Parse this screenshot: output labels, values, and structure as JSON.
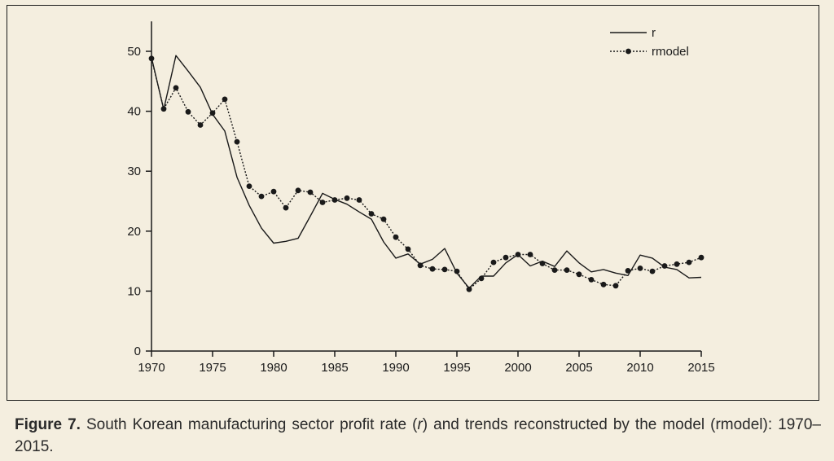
{
  "caption": {
    "label": "Figure 7.",
    "part1": " South Korean manufacturing sector profit rate (",
    "r_symbol": "r",
    "part2": ") and trends reconstructed by the model (rmodel): 1970–2015."
  },
  "chart_data": {
    "type": "line",
    "title": "",
    "xlabel": "",
    "ylabel": "",
    "xlim": [
      1970,
      2015
    ],
    "ylim": [
      0,
      55
    ],
    "x_ticks": [
      1970,
      1975,
      1980,
      1985,
      1990,
      1995,
      2000,
      2005,
      2010,
      2015
    ],
    "y_ticks": [
      0,
      10,
      20,
      30,
      40,
      50
    ],
    "grid": false,
    "legend_position": "top-right",
    "x": [
      1970,
      1971,
      1972,
      1973,
      1974,
      1975,
      1976,
      1977,
      1978,
      1979,
      1980,
      1981,
      1982,
      1983,
      1984,
      1985,
      1986,
      1987,
      1988,
      1989,
      1990,
      1991,
      1992,
      1993,
      1994,
      1995,
      1996,
      1997,
      1998,
      1999,
      2000,
      2001,
      2002,
      2003,
      2004,
      2005,
      2006,
      2007,
      2008,
      2009,
      2010,
      2011,
      2012,
      2013,
      2014,
      2015
    ],
    "series": [
      {
        "name": "r",
        "style": "solid",
        "color": "#1a1a1a",
        "values": [
          49.0,
          40.3,
          49.3,
          46.7,
          44.0,
          39.5,
          36.7,
          29.0,
          24.3,
          20.5,
          18.0,
          18.3,
          18.8,
          22.5,
          26.3,
          25.3,
          24.5,
          23.2,
          22.0,
          18.2,
          15.5,
          16.2,
          14.5,
          15.3,
          17.1,
          13.0,
          10.5,
          12.5,
          12.5,
          14.7,
          16.1,
          14.2,
          15.0,
          14.1,
          16.7,
          14.7,
          13.2,
          13.6,
          13.0,
          12.6,
          16.0,
          15.5,
          14.0,
          13.6,
          12.2,
          12.3
        ]
      },
      {
        "name": "rmodel",
        "style": "dotted-with-markers",
        "color": "#1a1a1a",
        "values": [
          48.8,
          40.4,
          43.9,
          39.9,
          37.7,
          39.7,
          42.0,
          34.9,
          27.5,
          25.8,
          26.6,
          23.9,
          26.8,
          26.5,
          24.8,
          25.2,
          25.5,
          25.2,
          22.9,
          22.0,
          19.0,
          17.0,
          14.3,
          13.7,
          13.6,
          13.3,
          10.3,
          12.1,
          14.8,
          15.6,
          16.1,
          16.1,
          14.6,
          13.5,
          13.5,
          12.8,
          11.9,
          11.1,
          10.9,
          13.4,
          13.8,
          13.3,
          14.2,
          14.5,
          14.8,
          15.6
        ]
      }
    ]
  }
}
